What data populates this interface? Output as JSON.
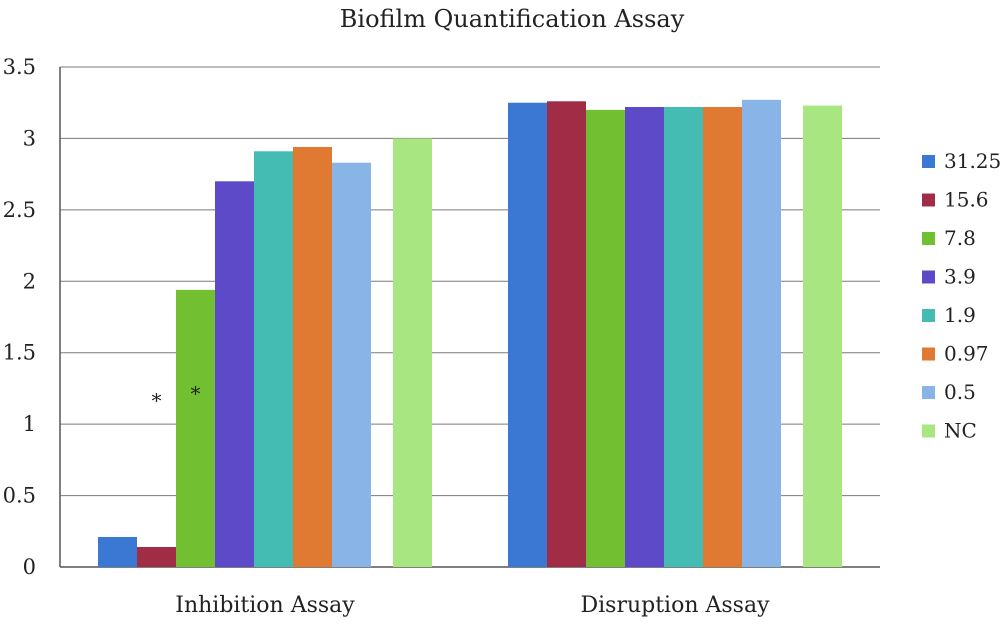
{
  "chart_data": {
    "type": "bar",
    "title": "Biofilm Quantification Assay",
    "xlabel": "",
    "ylabel": "",
    "categories": [
      "Inhibition Assay",
      "Disruption Assay"
    ],
    "ylim": [
      0,
      3.5
    ],
    "yticks": [
      "0",
      "0.5",
      "1",
      "1.5",
      "2",
      "2.5",
      "3",
      "3.5"
    ],
    "grid": true,
    "legend_position": "right",
    "series": [
      {
        "name": "31.25",
        "color": "#3a78d4",
        "values": [
          0.21,
          3.25
        ]
      },
      {
        "name": "15.6",
        "color": "#a02c45",
        "values": [
          0.14,
          3.26
        ]
      },
      {
        "name": "7.8",
        "color": "#72c032",
        "values": [
          1.94,
          3.2
        ]
      },
      {
        "name": "3.9",
        "color": "#5c4ac8",
        "values": [
          2.7,
          3.22
        ]
      },
      {
        "name": "1.9",
        "color": "#44bcb4",
        "values": [
          2.91,
          3.22
        ]
      },
      {
        "name": "0.97",
        "color": "#e07a32",
        "values": [
          2.94,
          3.22
        ]
      },
      {
        "name": "0.5",
        "color": "#88b4e8",
        "values": [
          2.83,
          3.27
        ]
      },
      {
        "name": "NC",
        "color": "#a8e682",
        "values": [
          3.0,
          3.23
        ]
      }
    ],
    "annotations": [
      {
        "text": "*",
        "series": "15.6",
        "category": "Inhibition Assay",
        "value": 1.15
      },
      {
        "text": "*",
        "series": "7.8",
        "category": "Inhibition Assay",
        "value": 1.2
      }
    ]
  }
}
